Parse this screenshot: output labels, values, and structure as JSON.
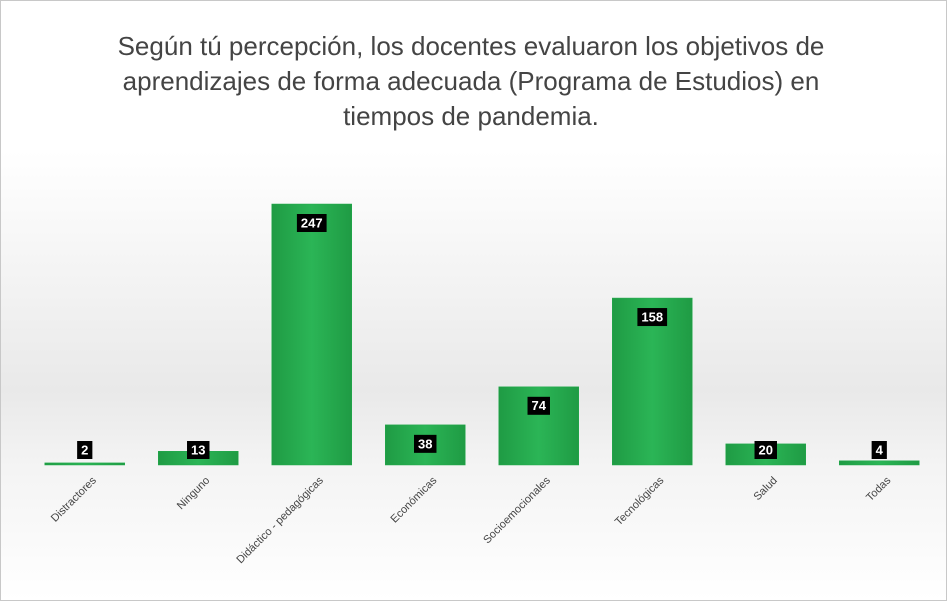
{
  "chart_data": {
    "type": "bar",
    "title": "Según tú percepción, los docentes evaluaron los objetivos de aprendizajes de forma adecuada (Programa de Estudios) en tiempos de pandemia.",
    "categories": [
      "Distractores",
      "Ninguno",
      "Didáctico - pedagógicas",
      "Económicas",
      "Socioemocionales",
      "Tecnológicas",
      "Salud",
      "Todas"
    ],
    "values": [
      2,
      13,
      247,
      38,
      74,
      158,
      20,
      4
    ],
    "color": "#22a94b"
  }
}
